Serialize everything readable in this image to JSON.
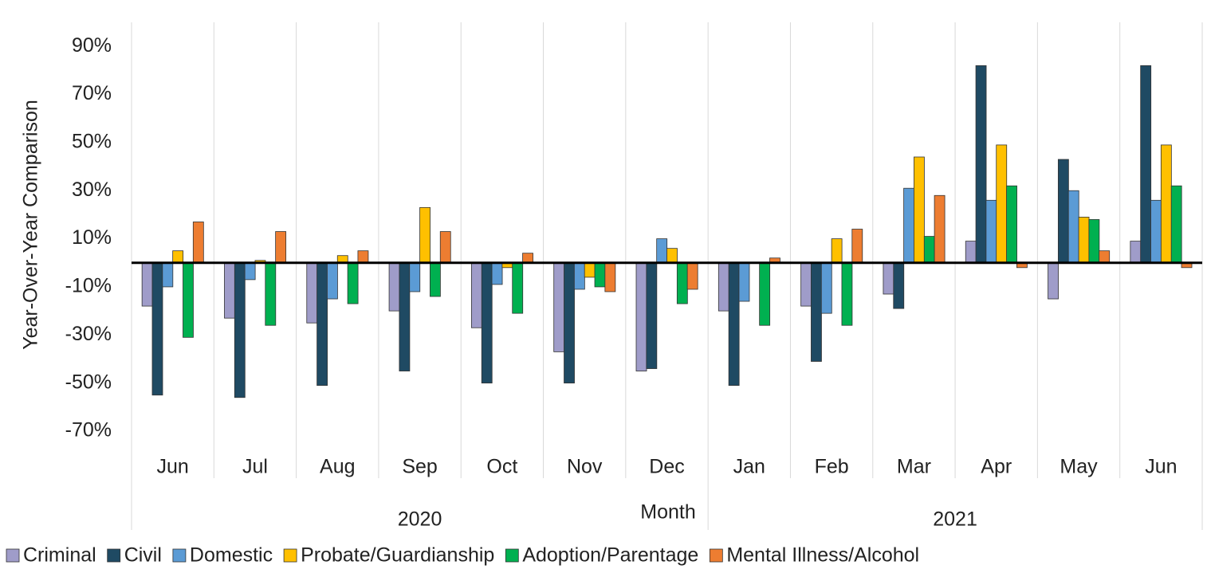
{
  "chart_data": {
    "type": "bar",
    "y_axis_title": "Year-Over-Year Comparison",
    "x_axis_title": "Month",
    "category_groups": [
      {
        "label": "2020",
        "categories": [
          "Jun",
          "Jul",
          "Aug",
          "Sep",
          "Oct",
          "Nov",
          "Dec"
        ]
      },
      {
        "label": "2021",
        "categories": [
          "Jan",
          "Feb",
          "Mar",
          "Apr",
          "May",
          "Jun"
        ]
      }
    ],
    "series": [
      {
        "name": "Criminal",
        "color": "#9f9cc9",
        "values": [
          -18,
          -23,
          -25,
          -20,
          -27,
          -37,
          -45,
          -20,
          -18,
          -13,
          9,
          -15,
          9
        ]
      },
      {
        "name": "Civil",
        "color": "#1f4a63",
        "values": [
          -55,
          -56,
          -51,
          -45,
          -50,
          -50,
          -44,
          -51,
          -41,
          -19,
          82,
          43,
          82
        ]
      },
      {
        "name": "Domestic",
        "color": "#5b9bd5",
        "values": [
          -10,
          -7,
          -15,
          -12,
          -9,
          -11,
          10,
          -16,
          -21,
          31,
          26,
          30,
          26
        ]
      },
      {
        "name": "Probate/Guardianship",
        "color": "#ffc000",
        "values": [
          5,
          1,
          3,
          23,
          -2,
          -6,
          6,
          0,
          10,
          44,
          49,
          19,
          49
        ]
      },
      {
        "name": "Adoption/Parentage",
        "color": "#00b050",
        "values": [
          -31,
          -26,
          -17,
          -14,
          -21,
          -10,
          -17,
          -26,
          -26,
          11,
          32,
          18,
          32
        ]
      },
      {
        "name": "Mental Illness/Alcohol",
        "color": "#ed7d31",
        "values": [
          17,
          13,
          5,
          13,
          4,
          -12,
          -11,
          2,
          14,
          28,
          -2,
          5,
          -2
        ]
      }
    ],
    "ylim": [
      -70,
      100
    ],
    "yticks": [
      {
        "value": -70,
        "label": "-70%"
      },
      {
        "value": -50,
        "label": "-50%"
      },
      {
        "value": -30,
        "label": "-30%"
      },
      {
        "value": -10,
        "label": "-10%"
      },
      {
        "value": 10,
        "label": "10%"
      },
      {
        "value": 30,
        "label": "30%"
      },
      {
        "value": 50,
        "label": "50%"
      },
      {
        "value": 70,
        "label": "70%"
      },
      {
        "value": 90,
        "label": "90%"
      }
    ],
    "legend": "bottom"
  }
}
